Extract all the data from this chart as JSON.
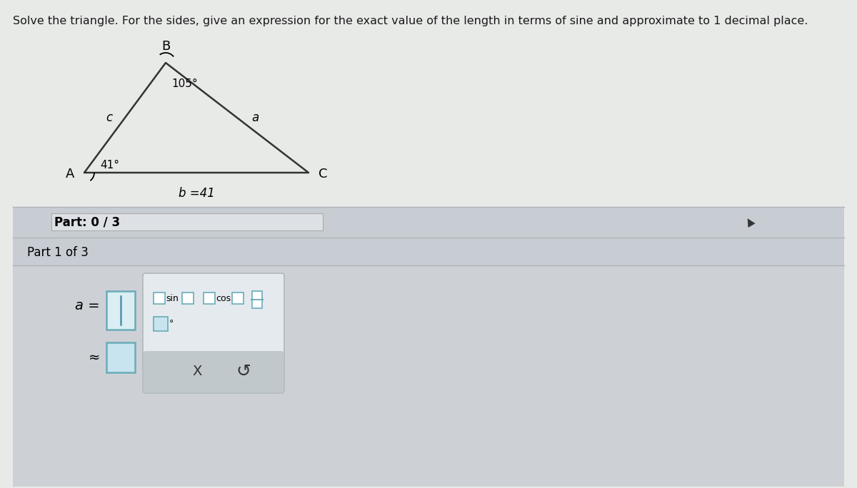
{
  "title": "Solve the triangle. For the sides, give an expression for the exact value of the length in terms of sine and approximate to 1 decimal place.",
  "title_fontsize": 11.5,
  "title_color": "#1a1a1a",
  "bg_top_color": "#e8eae8",
  "bg_bottom_color": "#d0d4d8",
  "panel_color": "#d8dce0",
  "part03_bg": "#c8ccd0",
  "part1_bg": "#d0d4d8",
  "lower_bg": "#d0d4d8",
  "white_bar_color": "#e8ecf0",
  "tri_line_color": "#333333",
  "sep_color": "#b0b4b8",
  "sep_color2": "#c8ccd0",
  "box_border": "#6aabb8",
  "box_fill": "#daeef4",
  "box_fill2": "#c8e4ee",
  "popup_bg": "#e4eaee",
  "popup_border": "#b0b8be",
  "btm_bar": "#c0c8cc",
  "cursor_color": "#5090a8",
  "angle_A_label": "41°",
  "angle_B_label": "105°",
  "label_A": "A",
  "label_B": "B",
  "label_C": "C",
  "label_a": "a",
  "label_b": "b =41",
  "label_c": "c",
  "part_progress": "Part: 0 / 3",
  "part_label": "Part 1 of 3",
  "input_label": "a =",
  "approx_sym": "≈",
  "sin_text": "sin",
  "cos_text": "cos",
  "x_text": "X",
  "deg_sym": "°",
  "undo_sym": "↺",
  "cursor_arrow": "▲"
}
